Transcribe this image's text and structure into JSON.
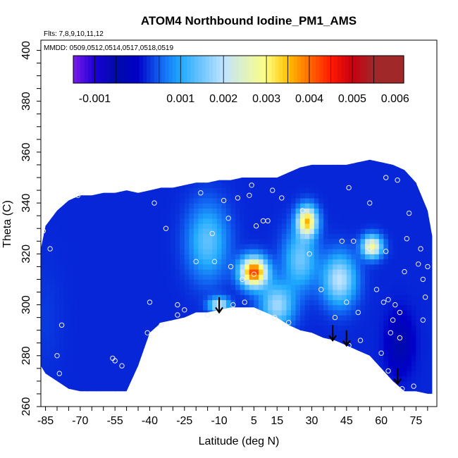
{
  "chart_data": {
    "type": "heatmap",
    "title": "ATOM4 Northbound Iodine_PM1_AMS",
    "annotations": [
      "Flts: 7,8,9,10,11,12",
      "MMDD: 0509,0512,0514,0517,0518,0519"
    ],
    "xlabel": "Latitude (deg N)",
    "ylabel": "Theta (C)",
    "xlim": [
      -87,
      84
    ],
    "ylim": [
      260,
      404
    ],
    "x_ticks": [
      -85,
      -70,
      -55,
      -40,
      -25,
      -10,
      5,
      15,
      30,
      45,
      60,
      75
    ],
    "y_ticks": [
      260,
      280,
      300,
      320,
      340,
      360,
      380,
      400
    ],
    "colorbar": {
      "range": [
        -0.0015,
        0.0062
      ],
      "ticks": [
        -0.001,
        0.001,
        0.002,
        0.003,
        0.004,
        0.005,
        0.006
      ],
      "tick_labels": [
        "-0.001",
        "0.001",
        "0.002",
        "0.003",
        "0.004",
        "0.005",
        "0.006"
      ],
      "colors": [
        "#7a1be8",
        "#1a00d8",
        "#000ca6",
        "#0000c8",
        "#1060f0",
        "#20aaff",
        "#c0e4ff",
        "#ffff80",
        "#ffc000",
        "#ff6a00",
        "#ff1a00",
        "#c80010",
        "#a02828"
      ],
      "breaks": [
        -0.0015,
        -0.001,
        -0.0005,
        0.0,
        0.0005,
        0.001,
        0.002,
        0.003,
        0.0035,
        0.004,
        0.0045,
        0.005,
        0.0055,
        0.0062
      ]
    },
    "envelope": {
      "lat": [
        -87,
        -85,
        -80,
        -75,
        -70,
        -65,
        -60,
        -55,
        -50,
        -45,
        -40,
        -35,
        -30,
        -25,
        -20,
        -15,
        -10,
        -5,
        0,
        5,
        10,
        15,
        20,
        25,
        30,
        35,
        40,
        45,
        50,
        55,
        60,
        65,
        70,
        75,
        80,
        82
      ],
      "theta_top": [
        322,
        331,
        337,
        341,
        343,
        343,
        344,
        344,
        345,
        344,
        345,
        346,
        346,
        347,
        348,
        348,
        349,
        349,
        350,
        350,
        350,
        350,
        352,
        354,
        355,
        355,
        355,
        355,
        356,
        357,
        356,
        355,
        353,
        348,
        337,
        327
      ],
      "theta_bottom": [
        276,
        273,
        270,
        267,
        266,
        266,
        266,
        266,
        266,
        276,
        289,
        293,
        294,
        295,
        297,
        297,
        298,
        299,
        299,
        299,
        297,
        295,
        292,
        290,
        289,
        287,
        286,
        284,
        282,
        280,
        275,
        270,
        266,
        266,
        265,
        265
      ]
    },
    "hotspots": [
      {
        "lat": 5,
        "theta": 313,
        "value": 0.0043,
        "spread_lat": 4,
        "spread_theta": 4
      },
      {
        "lat": 28,
        "theta": 333,
        "value": 0.0034,
        "spread_lat": 3,
        "spread_theta": 4
      },
      {
        "lat": 56,
        "theta": 323,
        "value": 0.0029,
        "spread_lat": 3,
        "spread_theta": 3
      },
      {
        "lat": -10,
        "theta": 300,
        "value": 0.0022,
        "spread_lat": 3,
        "spread_theta": 2
      },
      {
        "lat": 15,
        "theta": 300,
        "value": 0.0018,
        "spread_lat": 5,
        "spread_theta": 6
      },
      {
        "lat": 42,
        "theta": 310,
        "value": 0.002,
        "spread_lat": 5,
        "spread_theta": 7
      },
      {
        "lat": -15,
        "theta": 325,
        "value": 0.0014,
        "spread_lat": 6,
        "spread_theta": 10
      },
      {
        "lat": 25,
        "theta": 318,
        "value": 0.0015,
        "spread_lat": 5,
        "spread_theta": 8
      },
      {
        "lat": 68,
        "theta": 285,
        "value": -0.0004,
        "spread_lat": 4,
        "spread_theta": 8
      },
      {
        "lat": -85,
        "theta": 295,
        "value": 0.0003,
        "spread_lat": 5,
        "spread_theta": 15
      }
    ],
    "background_value": 0.0002,
    "sample_points": [
      [
        -86,
        329
      ],
      [
        -83,
        322
      ],
      [
        -80,
        280
      ],
      [
        -79,
        273
      ],
      [
        -78,
        292
      ],
      [
        -71,
        343
      ],
      [
        -56,
        279
      ],
      [
        -55,
        278
      ],
      [
        -52,
        276
      ],
      [
        -41,
        289
      ],
      [
        -40,
        301
      ],
      [
        -38,
        340
      ],
      [
        -35,
        292
      ],
      [
        -33,
        330
      ],
      [
        -28,
        300
      ],
      [
        -28,
        296
      ],
      [
        -25,
        298
      ],
      [
        -20,
        317
      ],
      [
        -18,
        344
      ],
      [
        -15,
        296
      ],
      [
        -13,
        328
      ],
      [
        -12,
        317
      ],
      [
        -8,
        341
      ],
      [
        -6,
        334
      ],
      [
        -5,
        315
      ],
      [
        -4,
        300
      ],
      [
        -2,
        342
      ],
      [
        0,
        310
      ],
      [
        1,
        301
      ],
      [
        3,
        343
      ],
      [
        4,
        347
      ],
      [
        5,
        312
      ],
      [
        6,
        331
      ],
      [
        7,
        297
      ],
      [
        9,
        333
      ],
      [
        11,
        333
      ],
      [
        13,
        345
      ],
      [
        14,
        295
      ],
      [
        17,
        342
      ],
      [
        20,
        293
      ],
      [
        26,
        337
      ],
      [
        29,
        320
      ],
      [
        34,
        306
      ],
      [
        40,
        295
      ],
      [
        43,
        325
      ],
      [
        45,
        301
      ],
      [
        46,
        346
      ],
      [
        46,
        284
      ],
      [
        48,
        325
      ],
      [
        50,
        297
      ],
      [
        51,
        286
      ],
      [
        55,
        340
      ],
      [
        55,
        322
      ],
      [
        58,
        306
      ],
      [
        60,
        281
      ],
      [
        61,
        301
      ],
      [
        62,
        321
      ],
      [
        62,
        350
      ],
      [
        63,
        302
      ],
      [
        63,
        274
      ],
      [
        64,
        289
      ],
      [
        65,
        294
      ],
      [
        66,
        300
      ],
      [
        67,
        349
      ],
      [
        68,
        297
      ],
      [
        68,
        287
      ],
      [
        69,
        267
      ],
      [
        70,
        313
      ],
      [
        71,
        326
      ],
      [
        72,
        336
      ],
      [
        74,
        268
      ],
      [
        76,
        316
      ],
      [
        77,
        322
      ],
      [
        78,
        310
      ],
      [
        78,
        294
      ],
      [
        79,
        303
      ],
      [
        80,
        315
      ]
    ],
    "arrows": [
      {
        "lat": -10,
        "theta_from": 303,
        "theta_to": 297
      },
      {
        "lat": 39,
        "theta_from": 292,
        "theta_to": 286
      },
      {
        "lat": 45,
        "theta_from": 290,
        "theta_to": 284
      },
      {
        "lat": 67,
        "theta_from": 275,
        "theta_to": 269
      }
    ]
  }
}
